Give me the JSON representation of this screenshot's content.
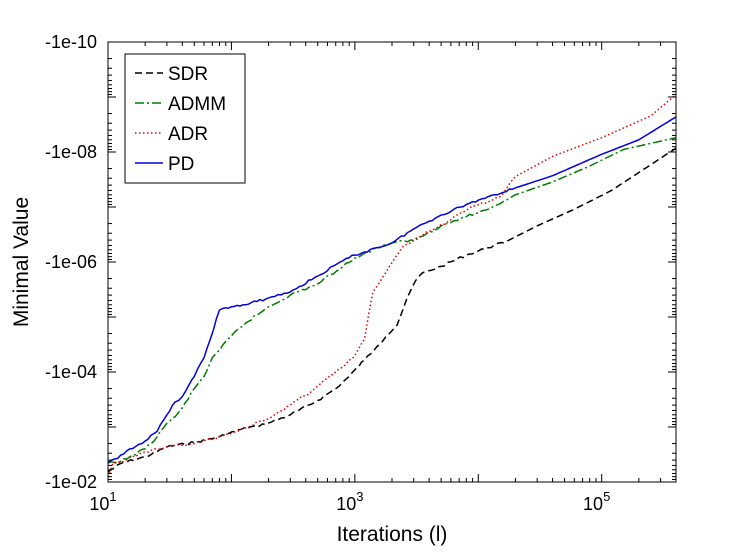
{
  "chart_data": {
    "type": "line",
    "xlabel": "Iterations (l)",
    "ylabel": "Minimal Value",
    "xscale": "log",
    "yscale": "log-negative",
    "xlim": [
      10,
      400000
    ],
    "ylim_magnitude": [
      0.01,
      1e-10
    ],
    "x_ticks": [
      {
        "value": 10,
        "base": "10",
        "exp": "1"
      },
      {
        "value": 1000,
        "base": "10",
        "exp": "3"
      },
      {
        "value": 100000,
        "base": "10",
        "exp": "5"
      }
    ],
    "y_ticks": [
      {
        "value": 1e-10,
        "label": "-1e-10"
      },
      {
        "value": 1e-08,
        "label": "-1e-08"
      },
      {
        "value": 1e-06,
        "label": "-1e-06"
      },
      {
        "value": 0.0001,
        "label": "-1e-04"
      },
      {
        "value": 0.01,
        "label": "-1e-02"
      }
    ],
    "grid": false,
    "legend_position": "top-left",
    "series": [
      {
        "name": "SDR",
        "color": "#000000",
        "dash": "dashed",
        "points": [
          [
            10,
            -0.0065
          ],
          [
            13,
            -0.0045
          ],
          [
            20,
            -0.0035
          ],
          [
            30,
            -0.0023
          ],
          [
            50,
            -0.0019
          ],
          [
            80,
            -0.0015
          ],
          [
            120,
            -0.0011
          ],
          [
            200,
            -0.00085
          ],
          [
            300,
            -0.0006
          ],
          [
            500,
            -0.00033
          ],
          [
            700,
            -0.0002
          ],
          [
            900,
            -0.00012
          ],
          [
            1200,
            -6e-05
          ],
          [
            1500,
            -3.5e-05
          ],
          [
            1800,
            -2.2e-05
          ],
          [
            2200,
            -1.4e-05
          ],
          [
            2500,
            -6.5e-06
          ],
          [
            2800,
            -3.5e-06
          ],
          [
            3100,
            -2.2e-06
          ],
          [
            3500,
            -1.6e-06
          ],
          [
            5000,
            -1.2e-06
          ],
          [
            8000,
            -7.5e-07
          ],
          [
            12000,
            -5.5e-07
          ],
          [
            17000,
            -4.2e-07
          ],
          [
            30000,
            -2.2e-07
          ],
          [
            60000,
            -1.1e-07
          ],
          [
            120000,
            -5e-08
          ],
          [
            250000,
            -1.7e-08
          ],
          [
            400000,
            -8.5e-09
          ]
        ]
      },
      {
        "name": "ADMM",
        "color": "#007a00",
        "dash": "dashdot",
        "points": [
          [
            10,
            -0.0045
          ],
          [
            12,
            -0.0045
          ],
          [
            15,
            -0.0035
          ],
          [
            20,
            -0.0025
          ],
          [
            25,
            -0.0015
          ],
          [
            30,
            -0.00085
          ],
          [
            35,
            -0.00065
          ],
          [
            40,
            -0.00045
          ],
          [
            50,
            -0.0002
          ],
          [
            60,
            -0.00012
          ],
          [
            70,
            -5.5e-05
          ],
          [
            80,
            -4e-05
          ],
          [
            100,
            -2.2e-05
          ],
          [
            130,
            -1.3e-05
          ],
          [
            200,
            -6.5e-06
          ],
          [
            300,
            -4e-06
          ],
          [
            500,
            -2.5e-06
          ],
          [
            800,
            -1.2e-06
          ],
          [
            1000,
            -8.5e-07
          ],
          [
            1500,
            -5.5e-07
          ],
          [
            2000,
            -4.5e-07
          ],
          [
            3000,
            -4e-07
          ],
          [
            5000,
            -2.2e-07
          ],
          [
            8000,
            -1.5e-07
          ],
          [
            12000,
            -1.1e-07
          ],
          [
            20000,
            -6e-08
          ],
          [
            40000,
            -3.5e-08
          ],
          [
            80000,
            -1.8e-08
          ],
          [
            150000,
            -9e-09
          ],
          [
            400000,
            -5.5e-09
          ]
        ]
      },
      {
        "name": "ADR",
        "color": "#e00000",
        "dash": "dotted",
        "points": [
          [
            10,
            -0.008
          ],
          [
            11,
            -0.0045
          ],
          [
            14,
            -0.004
          ],
          [
            20,
            -0.0028
          ],
          [
            30,
            -0.0023
          ],
          [
            50,
            -0.002
          ],
          [
            80,
            -0.0015
          ],
          [
            120,
            -0.0011
          ],
          [
            200,
            -0.0007
          ],
          [
            300,
            -0.0004
          ],
          [
            450,
            -0.00022
          ],
          [
            600,
            -0.00013
          ],
          [
            800,
            -8e-05
          ],
          [
            1000,
            -5e-05
          ],
          [
            1200,
            -2.5e-05
          ],
          [
            1300,
            -8.5e-06
          ],
          [
            1400,
            -3.5e-06
          ],
          [
            1500,
            -2.8e-06
          ],
          [
            1800,
            -1.5e-06
          ],
          [
            2500,
            -5e-07
          ],
          [
            4000,
            -2.8e-07
          ],
          [
            6000,
            -1.7e-07
          ],
          [
            7000,
            -1.3e-07
          ],
          [
            9000,
            -9.5e-08
          ],
          [
            12000,
            -8e-08
          ],
          [
            15000,
            -6.5e-08
          ],
          [
            20000,
            -2.8e-08
          ],
          [
            40000,
            -1.2e-08
          ],
          [
            100000,
            -5.5e-09
          ],
          [
            250000,
            -2.2e-09
          ],
          [
            400000,
            -9e-10
          ]
        ]
      },
      {
        "name": "PD",
        "color": "#0000e0",
        "dash": "solid",
        "points": [
          [
            10,
            -0.0045
          ],
          [
            12,
            -0.0037
          ],
          [
            15,
            -0.0025
          ],
          [
            20,
            -0.0018
          ],
          [
            25,
            -0.0012
          ],
          [
            30,
            -0.0006
          ],
          [
            35,
            -0.00035
          ],
          [
            40,
            -0.00028
          ],
          [
            50,
            -0.00012
          ],
          [
            60,
            -5.5e-05
          ],
          [
            80,
            -7.5e-06
          ],
          [
            100,
            -6.5e-06
          ],
          [
            130,
            -6e-06
          ],
          [
            200,
            -4.5e-06
          ],
          [
            300,
            -3.5e-06
          ],
          [
            500,
            -1.8e-06
          ],
          [
            800,
            -9.5e-07
          ],
          [
            1000,
            -7.5e-07
          ],
          [
            1500,
            -5.5e-07
          ],
          [
            2000,
            -4.5e-07
          ],
          [
            3000,
            -2.5e-07
          ],
          [
            5000,
            -1.4e-07
          ],
          [
            8000,
            -9e-08
          ],
          [
            12000,
            -6.5e-08
          ],
          [
            20000,
            -4.5e-08
          ],
          [
            40000,
            -2.7e-08
          ],
          [
            100000,
            -1.1e-08
          ],
          [
            200000,
            -6e-09
          ],
          [
            400000,
            -2.3e-09
          ]
        ]
      }
    ]
  }
}
